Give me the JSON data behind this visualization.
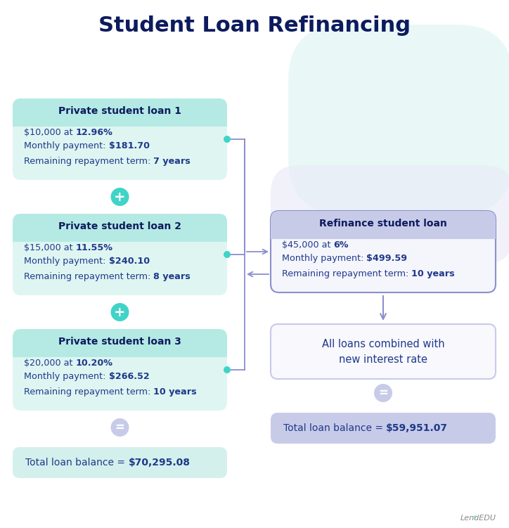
{
  "title": "Student Loan Refinancing",
  "title_color": "#0d1b5e",
  "bg_color": "#ffffff",
  "loans_left": [
    {
      "header": "Private student loan 1",
      "lines": [
        [
          "$10,000 at ",
          "12.96%"
        ],
        [
          "Monthly payment: ",
          "$181.70"
        ],
        [
          "Remaining repayment term: ",
          "7 years"
        ]
      ]
    },
    {
      "header": "Private student loan 2",
      "lines": [
        [
          "$15,000 at ",
          "11.55%"
        ],
        [
          "Monthly payment: ",
          "$240.10"
        ],
        [
          "Remaining repayment term: ",
          "8 years"
        ]
      ]
    },
    {
      "header": "Private student loan 3",
      "lines": [
        [
          "$20,000 at ",
          "10.20%"
        ],
        [
          "Monthly payment: ",
          "$266.52"
        ],
        [
          "Remaining repayment term: ",
          "10 years"
        ]
      ]
    }
  ],
  "refi": {
    "header": "Refinance student loan",
    "lines": [
      [
        "$45,000 at ",
        "6%"
      ],
      [
        "Monthly payment: ",
        "$499.59"
      ],
      [
        "Remaining repayment term: ",
        "10 years"
      ]
    ]
  },
  "combined_text": [
    "All loans combined with",
    "new interest rate"
  ],
  "total_left_plain": "Total loan balance = ",
  "total_left_bold": "$70,295.08",
  "total_right_plain": "Total loan balance = ",
  "total_right_bold": "$59,951.07",
  "loan_box_bg": "#dff5f2",
  "loan_header_bg": "#b5eae4",
  "refi_box_bg": "#f5f5fc",
  "refi_header_bg": "#c8cbe8",
  "combined_box_bg": "#f8f8fd",
  "combined_border": "#c8cbe8",
  "total_left_bg": "#d4f0ec",
  "total_right_bg": "#c8cbe8",
  "header_text_color": "#0d1b5e",
  "body_text_color": "#1e3a8a",
  "plus_bg": "#40d4c8",
  "equals_bg": "#c8cbe8",
  "dot_color": "#40d4c8",
  "connector_color": "#8b8fcc",
  "lendedu_color": "#888888"
}
